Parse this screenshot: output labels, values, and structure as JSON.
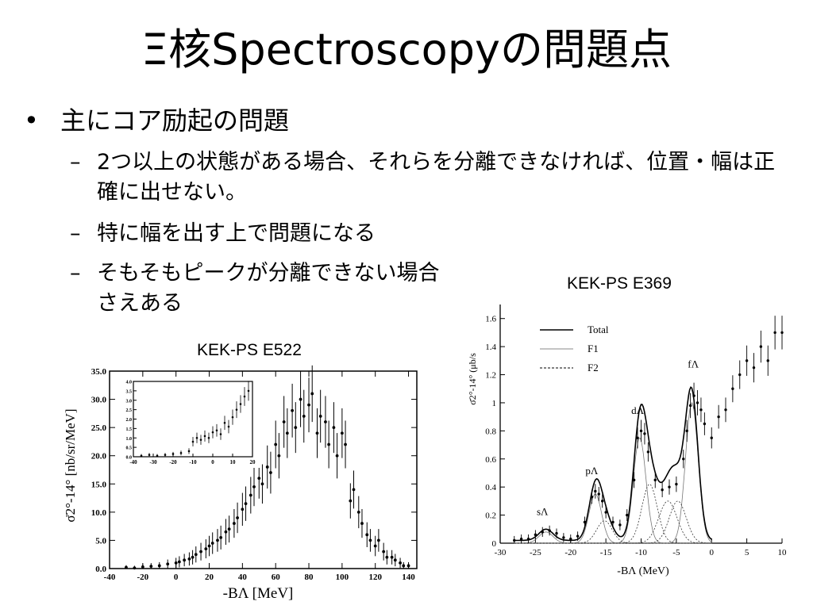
{
  "slide": {
    "title": "Ξ核Spectroscopyの問題点",
    "bullet1": {
      "marker": "•",
      "text": "主にコア励起の問題"
    },
    "sub_bullets": [
      {
        "marker": "–",
        "text": "2つ以上の状態がある場合、それらを分離できなければ、位置・幅は正確に出せない。"
      },
      {
        "marker": "–",
        "text": "特に幅を出す上で問題になる"
      },
      {
        "marker": "–",
        "text": "そもそもピークが分離できない場合さえある"
      }
    ]
  },
  "chart_data": [
    {
      "type": "scatter",
      "title": "KEK-PS E522",
      "xlabel": "-BΛ [MeV]",
      "ylabel": "σ̄2°-14° [nb/sr/MeV]",
      "xlim": [
        -40,
        145
      ],
      "ylim": [
        0,
        35
      ],
      "xticks": [
        "-40",
        "-20",
        "0",
        "20",
        "40",
        "60",
        "80",
        "100",
        "120",
        "140"
      ],
      "yticks": [
        "0.0",
        "5.0",
        "10.0",
        "15.0",
        "20.0",
        "25.0",
        "30.0",
        "35.0"
      ],
      "x": [
        -30,
        -25,
        -20,
        -15,
        -10,
        -5,
        0,
        2,
        5,
        8,
        10,
        12,
        15,
        18,
        20,
        22,
        25,
        27,
        30,
        32,
        35,
        37,
        40,
        42,
        45,
        47,
        50,
        52,
        55,
        57,
        60,
        62,
        65,
        67,
        70,
        72,
        75,
        77,
        80,
        82,
        85,
        87,
        90,
        92,
        95,
        97,
        100,
        102,
        105,
        107,
        110,
        112,
        115,
        117,
        120,
        122,
        125,
        127,
        130,
        132,
        135,
        137,
        140
      ],
      "y": [
        0.2,
        0.1,
        0.3,
        0.4,
        0.5,
        0.8,
        1.0,
        1.2,
        1.5,
        1.7,
        2.0,
        2.5,
        3.0,
        3.5,
        4.0,
        4.5,
        5.0,
        5.5,
        6.5,
        7.0,
        8.0,
        9.0,
        10.5,
        11.5,
        13.0,
        14.5,
        16.0,
        15.0,
        18.0,
        17.0,
        22.0,
        20.0,
        26.0,
        24.0,
        28.0,
        25.0,
        30.0,
        27.0,
        29.0,
        31.0,
        24.0,
        27.0,
        26.0,
        22.0,
        25.0,
        20.0,
        24.0,
        22.0,
        12.0,
        14.0,
        10.0,
        8.0,
        6.0,
        5.0,
        4.0,
        5.0,
        3.0,
        2.0,
        2.0,
        1.5,
        1.0,
        0.5,
        0.5
      ],
      "inset": {
        "xlim": [
          -40,
          20
        ],
        "ylim": [
          0,
          4
        ],
        "xticks": [
          "-40",
          "-30",
          "-20",
          "-10",
          "0",
          "10",
          "20"
        ],
        "yticks": [
          "0.0",
          "0.5",
          "1.0",
          "1.5",
          "2.0",
          "2.5",
          "3.0",
          "3.5",
          "4.0"
        ],
        "x": [
          -36,
          -32,
          -28,
          -24,
          -20,
          -16,
          -12,
          -10,
          -8,
          -6,
          -4,
          -2,
          0,
          2,
          4,
          6,
          8,
          10,
          12,
          14,
          16,
          18
        ],
        "y": [
          0.05,
          0.1,
          0.05,
          0.1,
          0.15,
          0.2,
          0.3,
          0.8,
          1.0,
          0.9,
          1.1,
          1.0,
          1.3,
          1.4,
          1.2,
          1.8,
          1.6,
          2.1,
          2.5,
          2.8,
          3.2,
          3.5
        ]
      }
    },
    {
      "type": "scatter",
      "title": "KEK-PS E369",
      "xlabel": "-BΛ (MeV)",
      "ylabel": "σ̄2°-14° (μb/s",
      "xlim": [
        -30,
        10
      ],
      "ylim": [
        0,
        1.7
      ],
      "xticks": [
        "-30",
        "-25",
        "-20",
        "-15",
        "-10",
        "-5",
        "0",
        "5",
        "10"
      ],
      "yticks": [
        "0",
        "0.2",
        "0.4",
        "0.6",
        "0.8",
        "1",
        "1.2",
        "1.4",
        "1.6"
      ],
      "legend": [
        "Total",
        "F1",
        "F2"
      ],
      "legend_placement": "top-left",
      "annotations": [
        "sΛ",
        "pΛ",
        "dΛ",
        "fΛ"
      ],
      "x": [
        -28,
        -27,
        -26,
        -25,
        -24,
        -23,
        -22,
        -21,
        -20,
        -19,
        -18,
        -17,
        -16.5,
        -16,
        -15.5,
        -15,
        -14,
        -13,
        -12,
        -11,
        -10.5,
        -10,
        -9.5,
        -9,
        -8,
        -7,
        -6,
        -5,
        -4,
        -3.5,
        -3,
        -2.5,
        -2,
        -1.5,
        -1,
        0,
        1,
        2,
        3,
        4,
        5,
        6,
        7,
        8,
        9,
        10
      ],
      "y": [
        0.02,
        0.03,
        0.03,
        0.06,
        0.08,
        0.09,
        0.07,
        0.04,
        0.03,
        0.05,
        0.15,
        0.33,
        0.37,
        0.35,
        0.3,
        0.22,
        0.15,
        0.13,
        0.2,
        0.45,
        0.75,
        0.8,
        0.78,
        0.65,
        0.45,
        0.38,
        0.4,
        0.42,
        0.6,
        0.8,
        0.98,
        1.05,
        1.0,
        0.95,
        0.85,
        0.75,
        0.9,
        0.95,
        1.1,
        1.2,
        1.3,
        1.25,
        1.4,
        1.3,
        1.5,
        1.5
      ]
    }
  ]
}
